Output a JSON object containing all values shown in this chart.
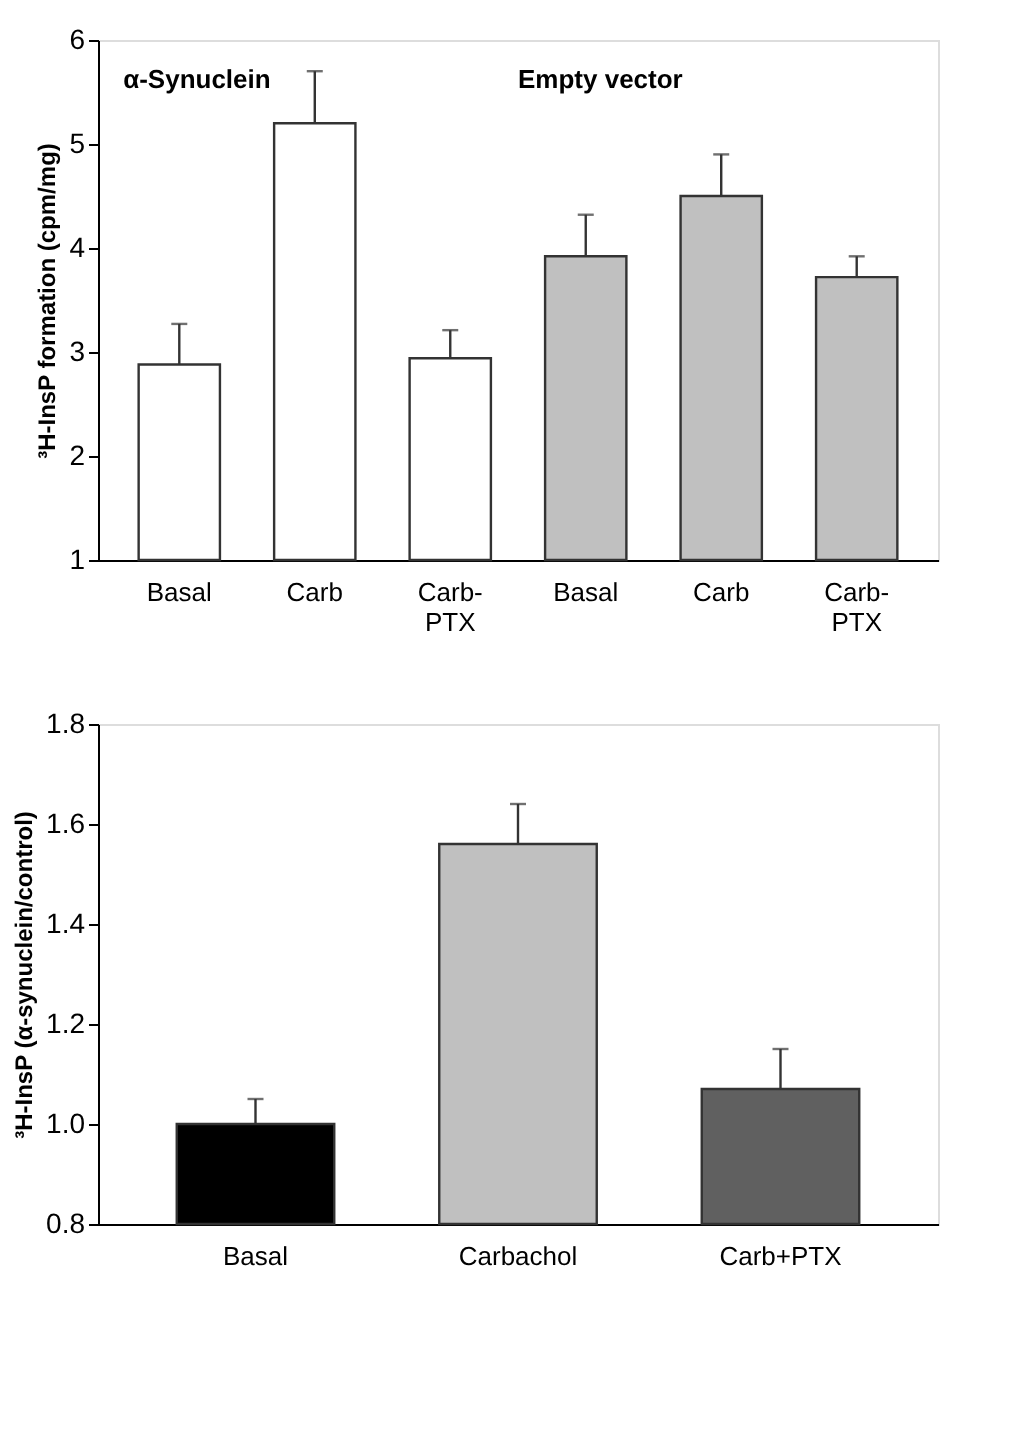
{
  "chart_data": [
    {
      "type": "bar",
      "categories": [
        "Basal",
        "Carb",
        "Carb-\nPTX",
        "Basal",
        "Carb",
        "Carb-\nPTX"
      ],
      "values": [
        2.88,
        5.2,
        2.94,
        3.92,
        4.5,
        3.72
      ],
      "colors": [
        "#ffffff",
        "#ffffff",
        "#ffffff",
        "#c0c0c0",
        "#c0c0c0",
        "#c0c0c0"
      ],
      "errors": [
        [
          2.88,
          3.27
        ],
        [
          5.2,
          5.7
        ],
        [
          2.94,
          3.21
        ],
        [
          3.92,
          4.32
        ],
        [
          4.5,
          4.9
        ],
        [
          3.72,
          3.92
        ]
      ],
      "ylabel": "³H-InsP formation (cpm/mg)",
      "ylim": [
        1,
        6
      ],
      "yticks": [
        1,
        2,
        3,
        4,
        5,
        6
      ],
      "annotations": [
        "α-Synuclein",
        "Empty vector"
      ],
      "grid": false
    },
    {
      "type": "bar",
      "categories": [
        "Basal",
        "Carbachol",
        "Carb+PTX"
      ],
      "values": [
        1.0,
        1.56,
        1.07
      ],
      "colors": [
        "#000000",
        "#c0c0c0",
        "#606060"
      ],
      "errors": [
        [
          1.0,
          1.05
        ],
        [
          1.56,
          1.64
        ],
        [
          1.07,
          1.15
        ]
      ],
      "ylabel": "³H-InsP (α-synuclein/control)",
      "ylim": [
        0.8,
        1.8
      ],
      "yticks": [
        {
          "value": 0.8,
          "label": "0.8"
        },
        {
          "value": 1.0,
          "label": "1.0"
        },
        {
          "value": 1.2,
          "label": "1.2"
        },
        {
          "value": 1.4,
          "label": "1.4"
        },
        {
          "value": 1.6,
          "label": "1.6"
        },
        {
          "value": 1.8,
          "label": "1.8"
        }
      ],
      "grid": false
    }
  ]
}
